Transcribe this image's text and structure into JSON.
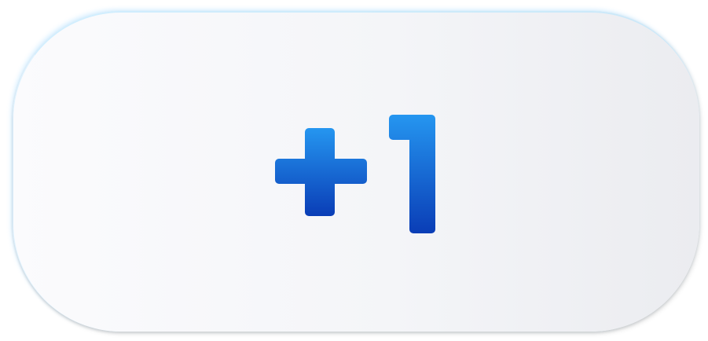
{
  "button": {
    "label": "+1",
    "icon": "plus-one-icon",
    "glyph_gradient": {
      "start": "#2596f0",
      "end": "#0a3db6"
    },
    "background_gradient": {
      "start": "#fbfbfd",
      "end": "#ebecf0"
    }
  }
}
